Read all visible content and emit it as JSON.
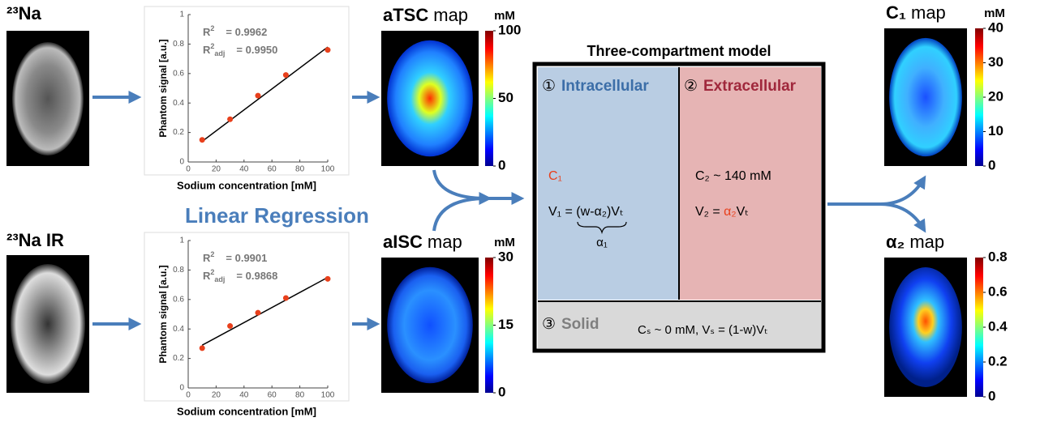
{
  "inputs": [
    {
      "name": "²³Na"
    },
    {
      "name": "²³Na IR"
    }
  ],
  "plots": [
    {
      "type": "scatter",
      "xlabel": "Sodium concentration [mM]",
      "ylabel": "Phantom signal [a.u.]",
      "x": [
        10,
        30,
        50,
        70,
        100
      ],
      "y": [
        0.15,
        0.29,
        0.45,
        0.59,
        0.76
      ],
      "fit_x": [
        10,
        100
      ],
      "fit_y": [
        0.14,
        0.78
      ],
      "xlim": [
        0,
        100
      ],
      "ylim": [
        0,
        1
      ],
      "xticks": [
        0,
        20,
        40,
        60,
        80,
        100
      ],
      "yticks": [
        0,
        0.2,
        0.4,
        0.6,
        0.8,
        1
      ],
      "point_color": "#e8401c",
      "stats": [
        {
          "symbol": "R",
          "sup": "2",
          "value": "= 0.9962"
        },
        {
          "symbol": "R",
          "sup": "2",
          "sub": "adj",
          "value": "= 0.9950"
        }
      ]
    },
    {
      "type": "scatter",
      "xlabel": "Sodium concentration [mM]",
      "ylabel": "Phantom signal [a.u.]",
      "x": [
        10,
        30,
        50,
        70,
        100
      ],
      "y": [
        0.27,
        0.42,
        0.51,
        0.61,
        0.74
      ],
      "fit_x": [
        10,
        100
      ],
      "fit_y": [
        0.29,
        0.75
      ],
      "xlim": [
        0,
        100
      ],
      "ylim": [
        0,
        1
      ],
      "xticks": [
        0,
        20,
        40,
        60,
        80,
        100
      ],
      "yticks": [
        0,
        0.2,
        0.4,
        0.6,
        0.8,
        1
      ],
      "point_color": "#e8401c",
      "stats": [
        {
          "symbol": "R",
          "sup": "2",
          "value": "= 0.9901"
        },
        {
          "symbol": "R",
          "sup": "2",
          "sub": "adj",
          "value": "= 0.9868"
        }
      ]
    }
  ],
  "method_label": "Linear Regression",
  "maps": [
    {
      "name": "aTSC",
      "suffix": "map",
      "unit": "mM",
      "lim": [
        0,
        100
      ],
      "ticks": [
        0,
        50,
        100
      ]
    },
    {
      "name": "aISC",
      "suffix": "map",
      "unit": "mM",
      "lim": [
        0,
        30
      ],
      "ticks": [
        0,
        15,
        30
      ]
    },
    {
      "name": "C₁",
      "suffix": "map",
      "unit": "mM",
      "lim": [
        0,
        40
      ],
      "ticks": [
        0,
        10,
        20,
        30,
        40
      ]
    },
    {
      "name": "α₂",
      "suffix": "map",
      "lim": [
        0,
        0.8
      ],
      "ticks": [
        0,
        0.2,
        0.4,
        0.6,
        0.8
      ]
    }
  ],
  "model": {
    "title": "Three-compartment model",
    "intracellular": {
      "number": "①",
      "label": "Intracellular",
      "concentration": "C₁",
      "volume": "V₁ = (w-α₂)Vₜ",
      "brace_label": "α₁"
    },
    "extracellular": {
      "number": "②",
      "label": "Extracellular",
      "concentration": "C₂ ~ 140 mM",
      "volume_left": "V₂ =",
      "volume_fraction": "α₂",
      "volume_right": "Vₜ"
    },
    "solid": {
      "number": "③",
      "label": "Solid",
      "equation": "Cₛ ~ 0 mM,  Vₛ = (1-w)Vₜ"
    }
  }
}
